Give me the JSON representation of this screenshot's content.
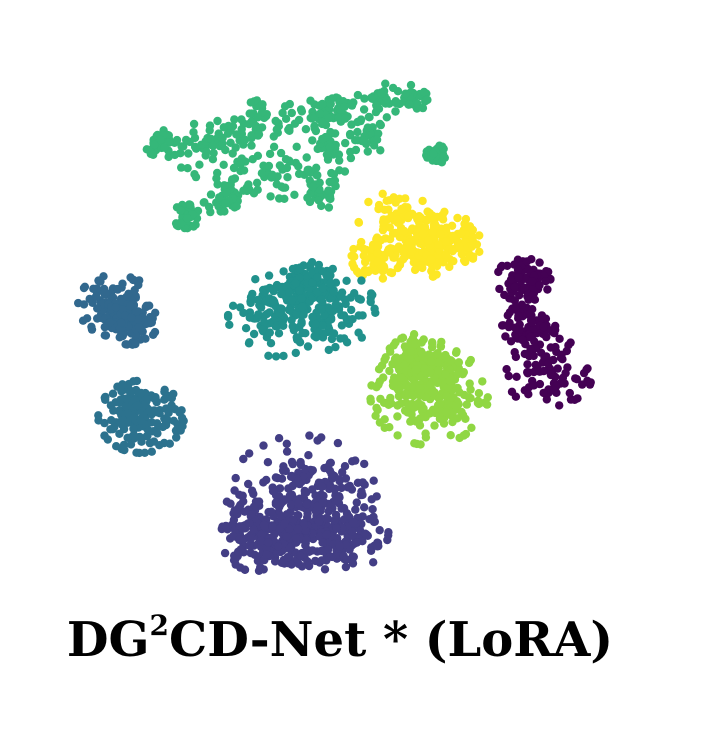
{
  "chart_data": {
    "type": "scatter",
    "title": "",
    "xlabel": "",
    "ylabel": "",
    "axes_visible": false,
    "grid": false,
    "legend": "none",
    "series": [
      {
        "color": "#35b779",
        "blobs": [
          [
            -0.55,
            0.72,
            0.06
          ],
          [
            -0.42,
            0.78,
            0.05
          ],
          [
            -0.3,
            0.85,
            0.05
          ],
          [
            -0.12,
            0.88,
            0.05
          ],
          [
            0.0,
            0.92,
            0.04
          ],
          [
            0.15,
            0.95,
            0.04
          ],
          [
            0.28,
            0.96,
            0.03
          ],
          [
            -0.38,
            0.58,
            0.05
          ],
          [
            -0.22,
            0.62,
            0.06
          ],
          [
            -0.05,
            0.7,
            0.05
          ],
          [
            -0.45,
            0.48,
            0.04
          ],
          [
            -0.08,
            0.52,
            0.04
          ],
          [
            0.1,
            0.78,
            0.04
          ],
          [
            -0.7,
            0.75,
            0.03
          ],
          [
            0.38,
            0.7,
            0.02
          ],
          [
            -0.6,
            0.42,
            0.03
          ]
        ],
        "count": 520
      },
      {
        "color": "#fde725",
        "blobs": [
          [
            0.22,
            0.38,
            0.07
          ],
          [
            0.38,
            0.34,
            0.07
          ],
          [
            0.15,
            0.22,
            0.05
          ],
          [
            0.3,
            0.24,
            0.06
          ],
          [
            0.45,
            0.28,
            0.05
          ]
        ],
        "count": 330
      },
      {
        "color": "#31688e",
        "blobs": [
          [
            -0.88,
            0.0,
            0.07
          ],
          [
            -0.82,
            -0.08,
            0.05
          ]
        ],
        "count": 190
      },
      {
        "color": "#2c728e",
        "blobs": [
          [
            -0.78,
            -0.52,
            0.08
          ]
        ],
        "count": 170
      },
      {
        "color": "#21918c",
        "blobs": [
          [
            -0.25,
            -0.05,
            0.09
          ],
          [
            -0.05,
            -0.02,
            0.09
          ],
          [
            -0.15,
            0.08,
            0.06
          ]
        ],
        "count": 330
      },
      {
        "color": "#90d743",
        "blobs": [
          [
            0.35,
            -0.42,
            0.11
          ],
          [
            0.32,
            -0.28,
            0.07
          ]
        ],
        "count": 380
      },
      {
        "color": "#440154",
        "blobs": [
          [
            0.72,
            0.12,
            0.05
          ],
          [
            0.82,
            -0.32,
            0.08
          ],
          [
            0.74,
            -0.1,
            0.05
          ]
        ],
        "count": 240
      },
      {
        "color": "#433e85",
        "blobs": [
          [
            -0.15,
            -0.9,
            0.14
          ],
          [
            -0.02,
            -1.05,
            0.1
          ],
          [
            -0.3,
            -1.08,
            0.08
          ]
        ],
        "count": 560
      }
    ]
  },
  "caption": {
    "pre": "DG",
    "sup": "2",
    "post": "CD-Net * (LoRA)"
  }
}
